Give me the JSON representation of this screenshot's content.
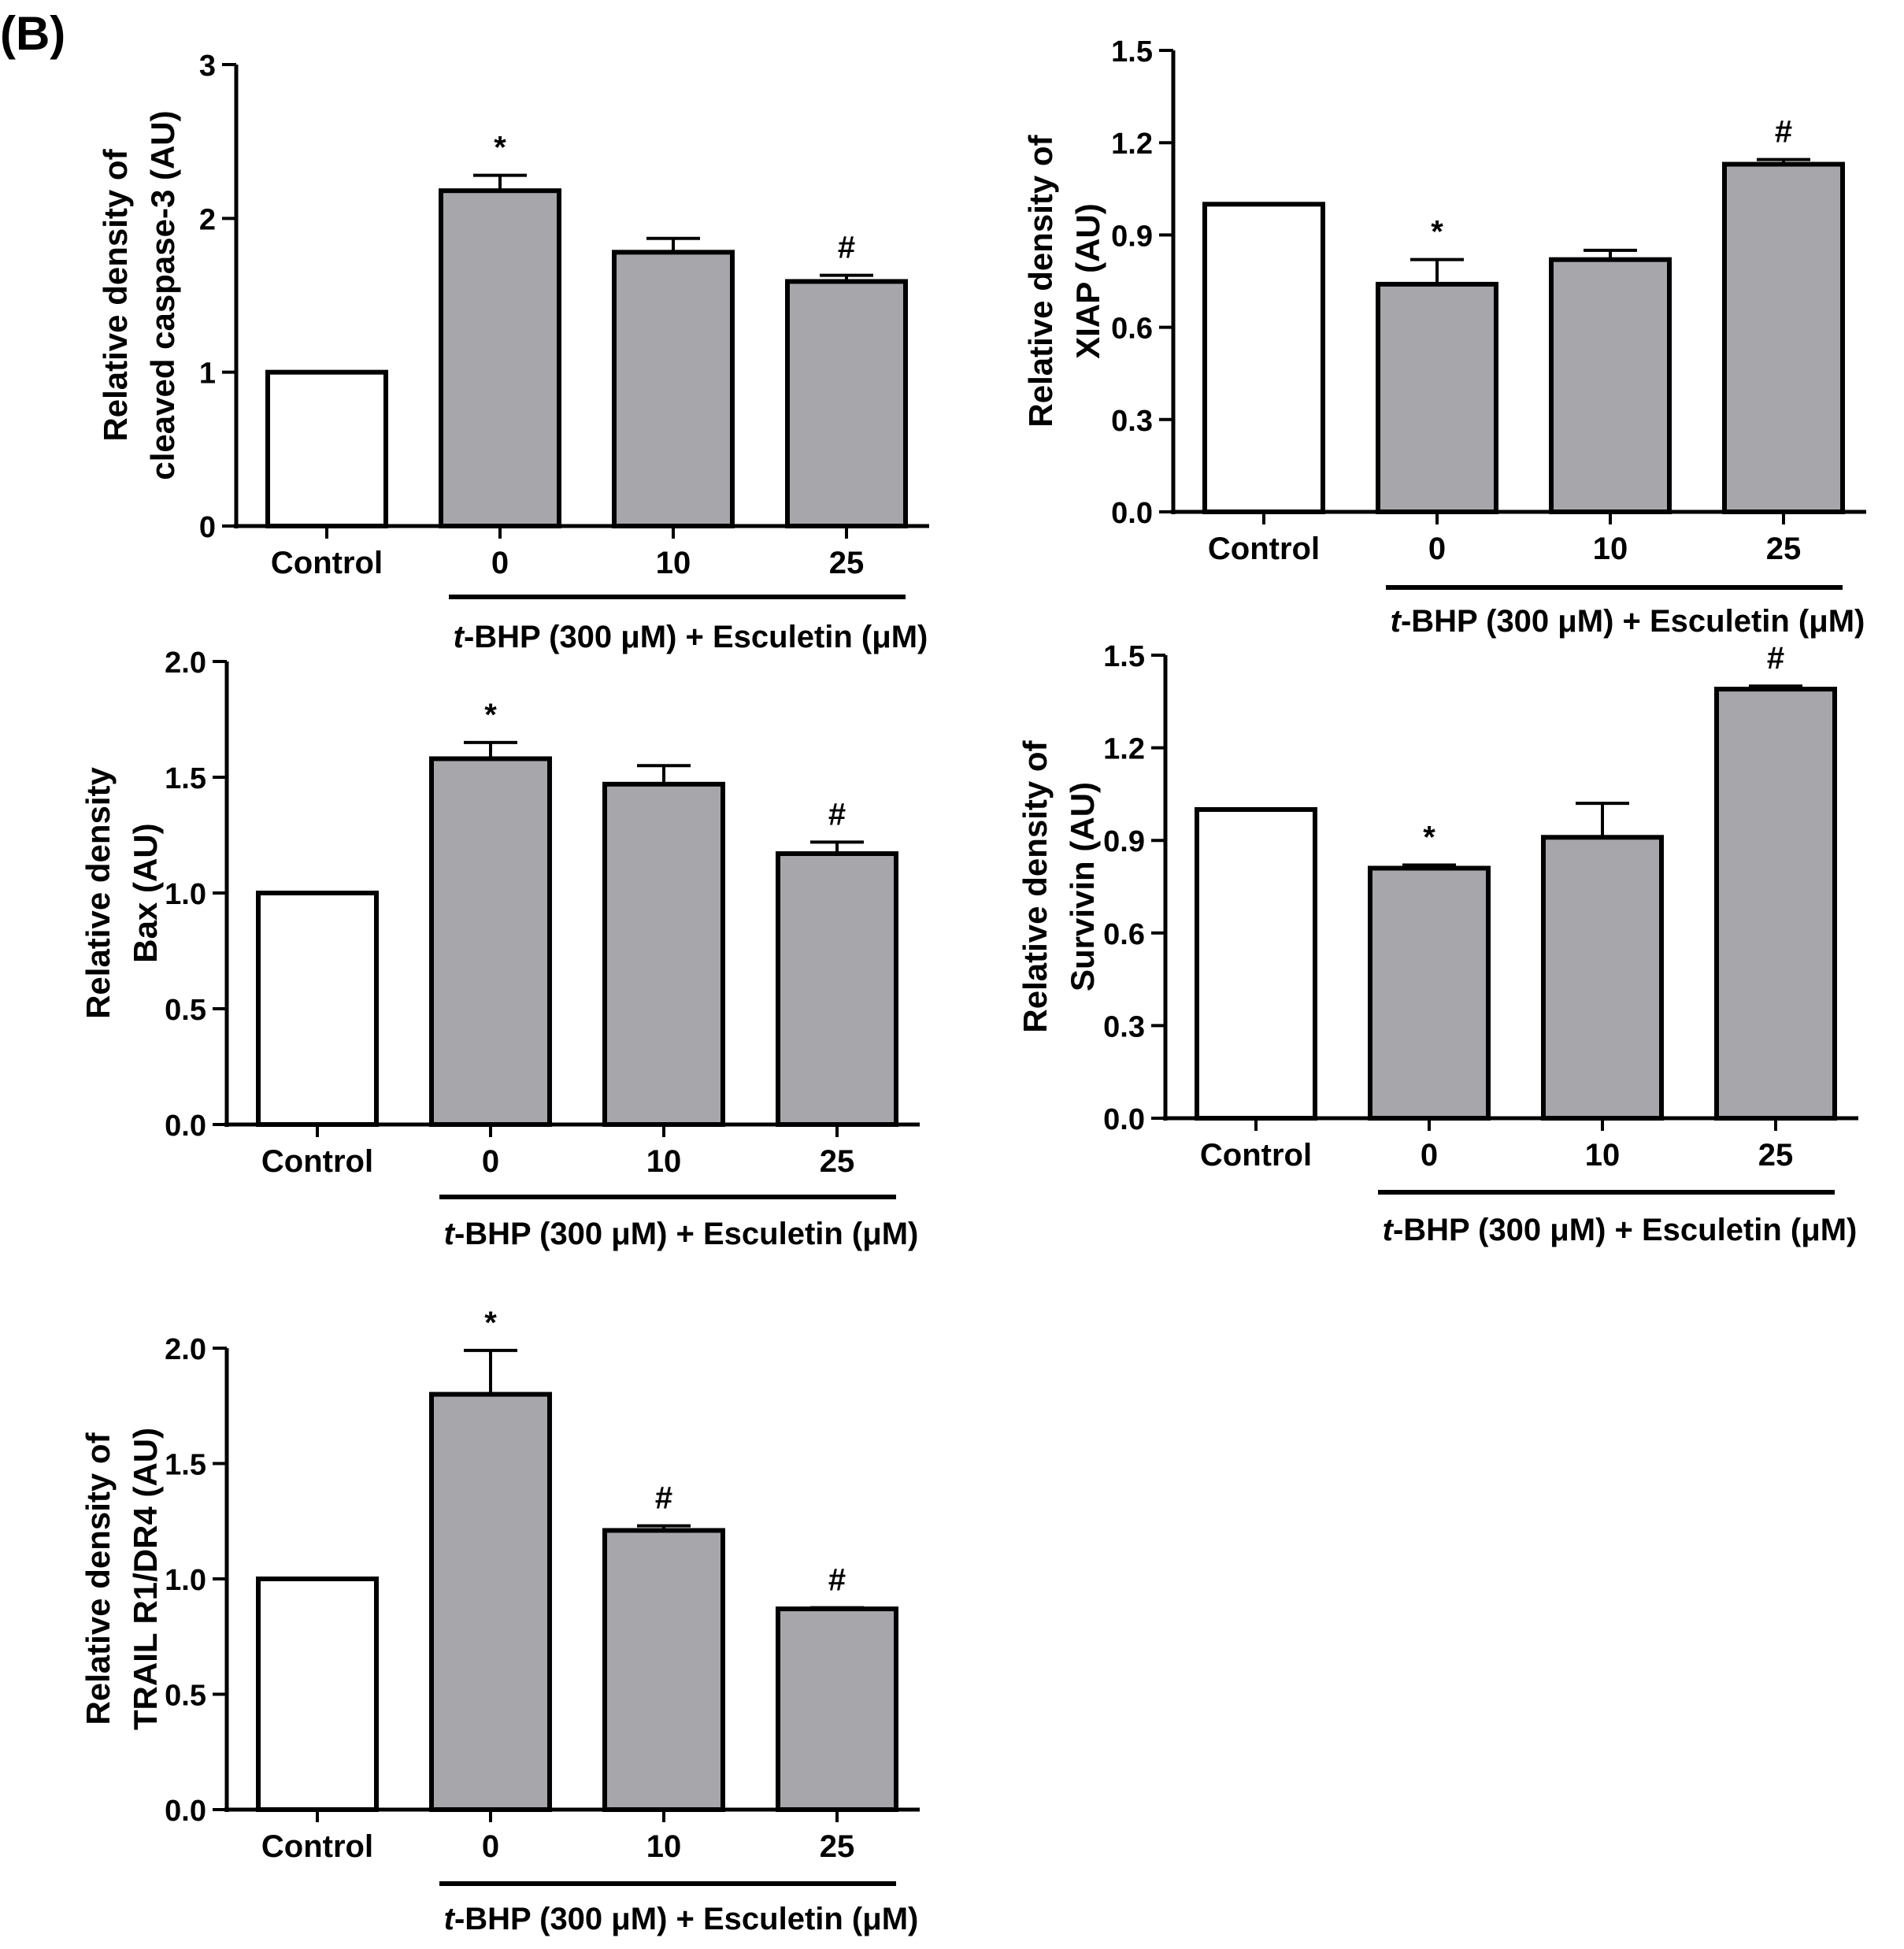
{
  "panel_label": "(B)",
  "colors": {
    "control_fill": "#ffffff",
    "treated_fill": "#a6a6ab",
    "stroke": "#000000"
  },
  "chart_data": [
    {
      "type": "bar",
      "ylabel": [
        "Relative density of",
        "cleaved caspase-3  (AU)"
      ],
      "categories": [
        "Control",
        "0",
        "10",
        "25"
      ],
      "group_label": [
        "t",
        "-BHP (300 μM) + Esculetin (μM)"
      ],
      "values": [
        1.0,
        2.18,
        1.78,
        1.59
      ],
      "errors": [
        0.0,
        0.1,
        0.09,
        0.04
      ],
      "annotations": [
        "",
        "*",
        "",
        "#"
      ],
      "ylim": [
        0,
        3
      ],
      "yticks": [
        "0",
        "1",
        "2",
        "3"
      ]
    },
    {
      "type": "bar",
      "ylabel": [
        "Relative density of",
        "XIAP (AU)"
      ],
      "categories": [
        "Control",
        "0",
        "10",
        "25"
      ],
      "group_label": [
        "t",
        "-BHP (300 μM) + Esculetin (μM)"
      ],
      "values": [
        1.0,
        0.74,
        0.82,
        1.13
      ],
      "errors": [
        0.0,
        0.08,
        0.03,
        0.015
      ],
      "annotations": [
        "",
        "*",
        "",
        "#"
      ],
      "ylim": [
        0,
        1.5
      ],
      "yticks": [
        "0.0",
        "0.3",
        "0.6",
        "0.9",
        "1.2",
        "1.5"
      ]
    },
    {
      "type": "bar",
      "ylabel": [
        "Relative density",
        "Bax (AU)"
      ],
      "categories": [
        "Control",
        "0",
        "10",
        "25"
      ],
      "group_label": [
        "t",
        "-BHP (300 μM) + Esculetin (μM)"
      ],
      "values": [
        1.0,
        1.58,
        1.47,
        1.17
      ],
      "errors": [
        0.0,
        0.07,
        0.08,
        0.05
      ],
      "annotations": [
        "",
        "*",
        "",
        "#"
      ],
      "ylim": [
        0,
        2.0
      ],
      "yticks": [
        "0.0",
        "0.5",
        "1.0",
        "1.5",
        "2.0"
      ]
    },
    {
      "type": "bar",
      "ylabel": [
        "Relative density of",
        "Survivin (AU)"
      ],
      "categories": [
        "Control",
        "0",
        "10",
        "25"
      ],
      "group_label": [
        "t",
        "-BHP (300 μM) + Esculetin (μM)"
      ],
      "values": [
        1.0,
        0.81,
        0.91,
        1.39
      ],
      "errors": [
        0.0,
        0.01,
        0.11,
        0.01
      ],
      "annotations": [
        "",
        "*",
        "",
        "#"
      ],
      "ylim": [
        0,
        1.5
      ],
      "yticks": [
        "0.0",
        "0.3",
        "0.6",
        "0.9",
        "1.2",
        "1.5"
      ]
    },
    {
      "type": "bar",
      "ylabel": [
        "Relative density of",
        "TRAIL R1/DR4 (AU)"
      ],
      "categories": [
        "Control",
        "0",
        "10",
        "25"
      ],
      "group_label": [
        "t",
        "-BHP (300 μM) + Esculetin (μM)"
      ],
      "values": [
        1.0,
        1.8,
        1.21,
        0.87
      ],
      "errors": [
        0.0,
        0.19,
        0.02,
        0.005
      ],
      "annotations": [
        "",
        "*",
        "#",
        "#"
      ],
      "ylim": [
        0,
        2.0
      ],
      "yticks": [
        "0.0",
        "0.5",
        "1.0",
        "1.5",
        "2.0"
      ]
    }
  ]
}
